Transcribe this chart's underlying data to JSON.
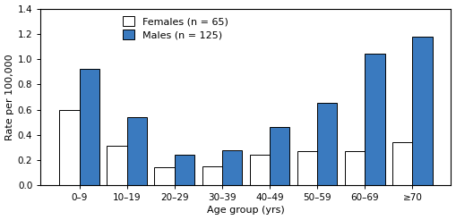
{
  "age_groups": [
    "0–9",
    "10–19",
    "20–29",
    "30–39",
    "40–49",
    "50–59",
    "60–69",
    "≥70"
  ],
  "females": [
    0.6,
    0.31,
    0.14,
    0.15,
    0.24,
    0.27,
    0.27,
    0.34
  ],
  "males": [
    0.92,
    0.54,
    0.24,
    0.28,
    0.46,
    0.65,
    1.04,
    1.18
  ],
  "female_color": "#ffffff",
  "male_color": "#3a7abf",
  "female_label": "Females (n = 65)",
  "male_label": "Males (n = 125)",
  "ylabel": "Rate per 100,000",
  "xlabel": "Age group (yrs)",
  "ylim": [
    0,
    1.4
  ],
  "yticks": [
    0.0,
    0.2,
    0.4,
    0.6,
    0.8,
    1.0,
    1.2,
    1.4
  ],
  "bar_edge_color": "#000000",
  "bar_width": 0.42,
  "bar_gap": 0.0,
  "axis_fontsize": 8,
  "legend_fontsize": 8,
  "tick_fontsize": 7.5
}
